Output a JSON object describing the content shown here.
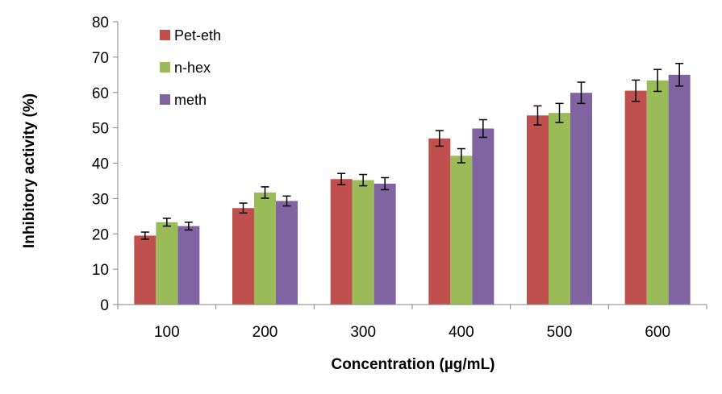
{
  "chart_data": {
    "type": "bar",
    "title": "",
    "xlabel": "Concentration (µg/mL)",
    "ylabel": "Inhibitory activity (%)",
    "categories": [
      "100",
      "200",
      "300",
      "400",
      "500",
      "600"
    ],
    "ylim": [
      0,
      80
    ],
    "yticks": [
      0,
      10,
      20,
      30,
      40,
      50,
      60,
      70,
      80
    ],
    "grid": false,
    "legend": "top-left",
    "series": [
      {
        "name": "Pet-eth",
        "color": "#C0504D",
        "values": [
          19.5,
          27.3,
          35.5,
          47.0,
          53.5,
          60.5
        ],
        "errors": [
          1.0,
          1.4,
          1.6,
          2.2,
          2.7,
          3.0
        ]
      },
      {
        "name": "n-hex",
        "color": "#9BBB59",
        "values": [
          23.3,
          31.7,
          35.2,
          42.1,
          54.2,
          63.4
        ],
        "errors": [
          1.1,
          1.6,
          1.6,
          2.0,
          2.7,
          3.1
        ]
      },
      {
        "name": "meth",
        "color": "#8064A2",
        "values": [
          22.2,
          29.3,
          34.2,
          49.8,
          59.9,
          65.0
        ],
        "errors": [
          1.1,
          1.4,
          1.7,
          2.5,
          3.0,
          3.2
        ]
      }
    ]
  }
}
